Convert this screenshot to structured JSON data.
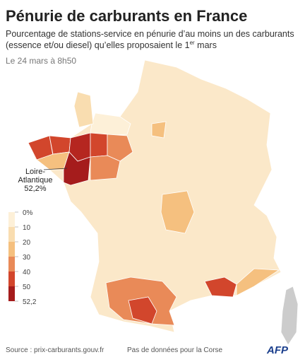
{
  "header": {
    "title": "Pénurie de carburants en France",
    "subtitle_lines": [
      "Pourcentage de stations-service en pénurie d’au moins un des carburants",
      "(essence et/ou diesel) qu’elles proposaient le 1"
    ],
    "subtitle_sup": "er",
    "subtitle_tail": " mars",
    "date": "Le 24 mars à 8h50"
  },
  "legend": {
    "ticks": [
      {
        "value": 0,
        "label": "0%"
      },
      10,
      20,
      30,
      40,
      50,
      {
        "value": 52.2,
        "label": "52,2"
      }
    ],
    "colors": [
      "#fdf0d8",
      "#f9ddb0",
      "#f5c07f",
      "#e98a58",
      "#d2462c",
      "#a51c1c"
    ]
  },
  "annotation": {
    "lines": [
      "Loire-",
      "Atlantique"
    ],
    "value_label": "52,2%"
  },
  "footer": {
    "source": "Source : prix-carburants.gouv.fr",
    "note": "Pas de données pour la Corse",
    "logo": "AFP"
  }
}
